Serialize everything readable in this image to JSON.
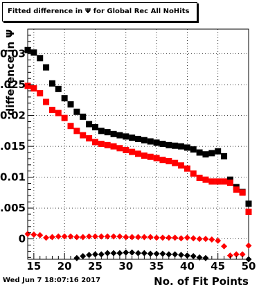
{
  "chart_data": {
    "type": "scatter",
    "title": "Fitted difference in  Ψ  for Global Rec All NoHits",
    "xlabel": "No. of Fit Points",
    "ylabel": "difference in  Ψ",
    "xlim": [
      14,
      50
    ],
    "ylim": [
      -0.0033,
      0.034
    ],
    "x_ticks": [
      15,
      20,
      25,
      30,
      35,
      40,
      45,
      50
    ],
    "y_ticks": [
      0,
      0.005,
      0.01,
      0.015,
      0.02,
      0.025,
      0.03
    ],
    "y_tick_labels": [
      "0",
      "0.005",
      "0.01",
      "0.015",
      "0.02",
      "0.025",
      "0.03"
    ],
    "grid": true,
    "series": [
      {
        "marker": "square",
        "color": "#000000",
        "x": [
          14,
          15,
          16,
          17,
          18,
          19,
          20,
          21,
          22,
          23,
          24,
          25,
          26,
          27,
          28,
          29,
          30,
          31,
          32,
          33,
          34,
          35,
          36,
          37,
          38,
          39,
          40,
          41,
          42,
          43,
          44,
          45,
          46,
          47,
          48,
          49,
          50
        ],
        "y": [
          0.0306,
          0.0302,
          0.0293,
          0.0278,
          0.0252,
          0.0243,
          0.0228,
          0.0218,
          0.0206,
          0.0198,
          0.0186,
          0.0181,
          0.0175,
          0.0173,
          0.017,
          0.0168,
          0.0166,
          0.0164,
          0.0162,
          0.016,
          0.0158,
          0.0156,
          0.0154,
          0.0152,
          0.0151,
          0.015,
          0.0148,
          0.0145,
          0.014,
          0.0137,
          0.0139,
          0.0142,
          0.0134,
          0.0096,
          0.0084,
          0.0076,
          0.0057
        ]
      },
      {
        "marker": "square",
        "color": "#ff0000",
        "x": [
          14,
          15,
          16,
          17,
          18,
          19,
          20,
          21,
          22,
          23,
          24,
          25,
          26,
          27,
          28,
          29,
          30,
          31,
          32,
          33,
          34,
          35,
          36,
          37,
          38,
          39,
          40,
          41,
          42,
          43,
          44,
          45,
          46,
          47,
          48,
          49,
          50
        ],
        "y": [
          0.0248,
          0.0244,
          0.0236,
          0.0222,
          0.0209,
          0.0204,
          0.0196,
          0.0183,
          0.0175,
          0.0168,
          0.0163,
          0.0157,
          0.0154,
          0.0152,
          0.015,
          0.0147,
          0.0144,
          0.0141,
          0.0138,
          0.0135,
          0.0133,
          0.0131,
          0.0128,
          0.0126,
          0.0123,
          0.0119,
          0.0114,
          0.0106,
          0.0099,
          0.0096,
          0.0093,
          0.0093,
          0.0093,
          0.0091,
          0.008,
          0.0075,
          0.0044
        ]
      },
      {
        "marker": "diamond",
        "color": "#ff0000",
        "x": [
          14,
          15,
          16,
          17,
          18,
          19,
          20,
          21,
          22,
          23,
          24,
          25,
          26,
          27,
          28,
          29,
          30,
          31,
          32,
          33,
          34,
          35,
          36,
          37,
          38,
          39,
          40,
          41,
          42,
          43,
          44,
          45,
          46,
          47,
          48,
          49,
          50
        ],
        "y": [
          0.0008,
          0.0007,
          0.0006,
          0.0002,
          0.0003,
          0.0004,
          0.0004,
          0.0004,
          0.0003,
          0.0003,
          0.0004,
          0.0004,
          0.0004,
          0.0004,
          0.0004,
          0.0004,
          0.0003,
          0.0003,
          0.0003,
          0.0003,
          0.0003,
          0.0002,
          0.0002,
          0.0002,
          0.0002,
          0.0001,
          0.0002,
          0.0001,
          0.0,
          0.0,
          -0.0001,
          -0.0003,
          -0.0012,
          -0.0027,
          -0.0025,
          -0.0025,
          -0.0011
        ]
      },
      {
        "marker": "diamond",
        "color": "#000000",
        "x": [
          22,
          23,
          24,
          25,
          26,
          27,
          28,
          29,
          30,
          31,
          32,
          33,
          34,
          35,
          36,
          37,
          38,
          39,
          40,
          41,
          42,
          43,
          50
        ],
        "y": [
          -0.0031,
          -0.0028,
          -0.0026,
          -0.0025,
          -0.0025,
          -0.0023,
          -0.0023,
          -0.0023,
          -0.0022,
          -0.0022,
          -0.0023,
          -0.0023,
          -0.0024,
          -0.0024,
          -0.0024,
          -0.0025,
          -0.0025,
          -0.0026,
          -0.0027,
          -0.0028,
          -0.003,
          -0.0031,
          -0.0033
        ]
      }
    ]
  },
  "footer": {
    "date_stamp": "Wed Jun  7 18:07:16 2017"
  }
}
